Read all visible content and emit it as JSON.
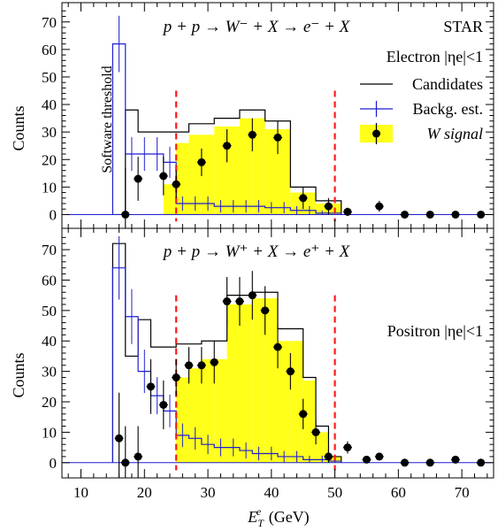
{
  "colors": {
    "candidates": "#000000",
    "background": "#1f1fd0",
    "signal_fill": "#ffff1a",
    "signal_points": "#000000",
    "threshold_lines": "#ff1a1a"
  },
  "chart_data": [
    {
      "type": "histogram",
      "panel": "top",
      "title": "p + p → W⁻ + X → e⁻ + X",
      "experiment_label": "STAR",
      "region_label": "Electron |ηe|<1",
      "ylabel": "Counts",
      "xlabel": "",
      "annotation": "Software threshold",
      "xlim": [
        7,
        75
      ],
      "ylim": [
        -5,
        77
      ],
      "y_ticks": [
        0,
        10,
        20,
        30,
        40,
        50,
        60,
        70
      ],
      "cut_lines": [
        25,
        50
      ],
      "legend": {
        "title": "Electron |ηe|<1",
        "entries": [
          "Candidates",
          "Backg. est.",
          "W signal"
        ]
      },
      "bin_edges": [
        15,
        17,
        19,
        21,
        23,
        25,
        27,
        29,
        31,
        33,
        35,
        37,
        39,
        41,
        43,
        45,
        47,
        49,
        51
      ],
      "series": [
        {
          "name": "Candidates",
          "style": "step",
          "values": [
            0,
            38,
            30,
            30,
            30,
            30,
            33,
            33,
            35,
            35,
            38,
            38,
            34,
            34,
            10,
            10,
            5,
            5
          ]
        },
        {
          "name": "Backg. est.",
          "style": "step",
          "values": [
            62,
            22,
            22,
            22,
            19,
            4,
            4,
            4,
            3,
            3,
            3,
            3,
            2.5,
            2.5,
            1.5,
            1.5,
            0.5,
            0.5
          ]
        },
        {
          "name": "W signal",
          "style": "fill",
          "values": [
            0,
            0,
            0,
            0,
            11,
            26,
            29,
            29,
            32,
            32,
            35,
            35,
            31,
            31,
            8,
            8,
            4,
            4
          ]
        }
      ],
      "points": {
        "name": "W signal",
        "x": [
          17,
          19,
          23,
          25,
          29,
          33,
          37,
          41,
          45,
          49,
          52,
          57,
          61,
          65,
          69,
          73
        ],
        "y": [
          0,
          13,
          14,
          11,
          19,
          25,
          29,
          28,
          6,
          3,
          1,
          3,
          0,
          0,
          0,
          0
        ],
        "yerr": [
          17,
          8,
          7,
          5,
          5,
          6,
          6,
          6,
          4,
          3,
          1.5,
          2,
          0.5,
          0.5,
          0.5,
          0.5
        ]
      }
    },
    {
      "type": "histogram",
      "panel": "bottom",
      "title": "p + p → W⁺ + X → e⁺ + X",
      "region_label": "Positron |ηe|<1",
      "ylabel": "Counts",
      "xlabel": "E_T^e (GeV)",
      "xlim": [
        7,
        75
      ],
      "ylim": [
        -5,
        77
      ],
      "x_ticks": [
        10,
        20,
        30,
        40,
        50,
        60,
        70
      ],
      "y_ticks": [
        0,
        10,
        20,
        30,
        40,
        50,
        60,
        70
      ],
      "cut_lines": [
        25,
        50
      ],
      "bin_edges": [
        15,
        17,
        19,
        21,
        23,
        25,
        27,
        29,
        31,
        33,
        35,
        37,
        39,
        41,
        43,
        45,
        47,
        49,
        51
      ],
      "series": [
        {
          "name": "Candidates",
          "style": "step",
          "values": [
            72,
            35,
            47,
            38,
            38,
            39,
            39,
            40,
            40,
            55,
            55,
            56,
            56,
            44,
            44,
            28,
            12,
            2
          ]
        },
        {
          "name": "Backg. est.",
          "style": "step",
          "values": [
            64,
            48,
            30,
            22,
            17,
            9,
            8,
            6,
            5,
            5,
            4,
            3,
            3,
            2,
            2,
            1,
            1,
            0.5
          ]
        },
        {
          "name": "W signal",
          "style": "fill",
          "values": [
            0,
            0,
            0,
            0,
            0,
            28,
            31,
            34,
            34,
            52,
            52,
            54,
            54,
            40,
            40,
            27,
            10,
            2
          ]
        }
      ],
      "points": {
        "name": "W signal",
        "x": [
          16,
          17,
          19,
          21,
          23,
          25,
          27,
          29,
          31,
          33,
          35,
          37,
          39,
          41,
          43,
          45,
          47,
          49,
          52,
          55,
          57,
          61,
          65,
          69,
          73
        ],
        "y": [
          8,
          0,
          2,
          25,
          19,
          28,
          32,
          32,
          33,
          53,
          53,
          55,
          50,
          38,
          30,
          16,
          10,
          2,
          5,
          1,
          2,
          0,
          0,
          1,
          0
        ],
        "yerr": [
          15,
          12,
          10,
          9,
          8,
          6,
          6,
          6,
          7,
          8,
          8,
          8,
          8,
          7,
          6,
          5,
          4,
          2,
          2,
          1,
          1,
          0.5,
          0.5,
          0.5,
          0.5
        ]
      }
    }
  ]
}
